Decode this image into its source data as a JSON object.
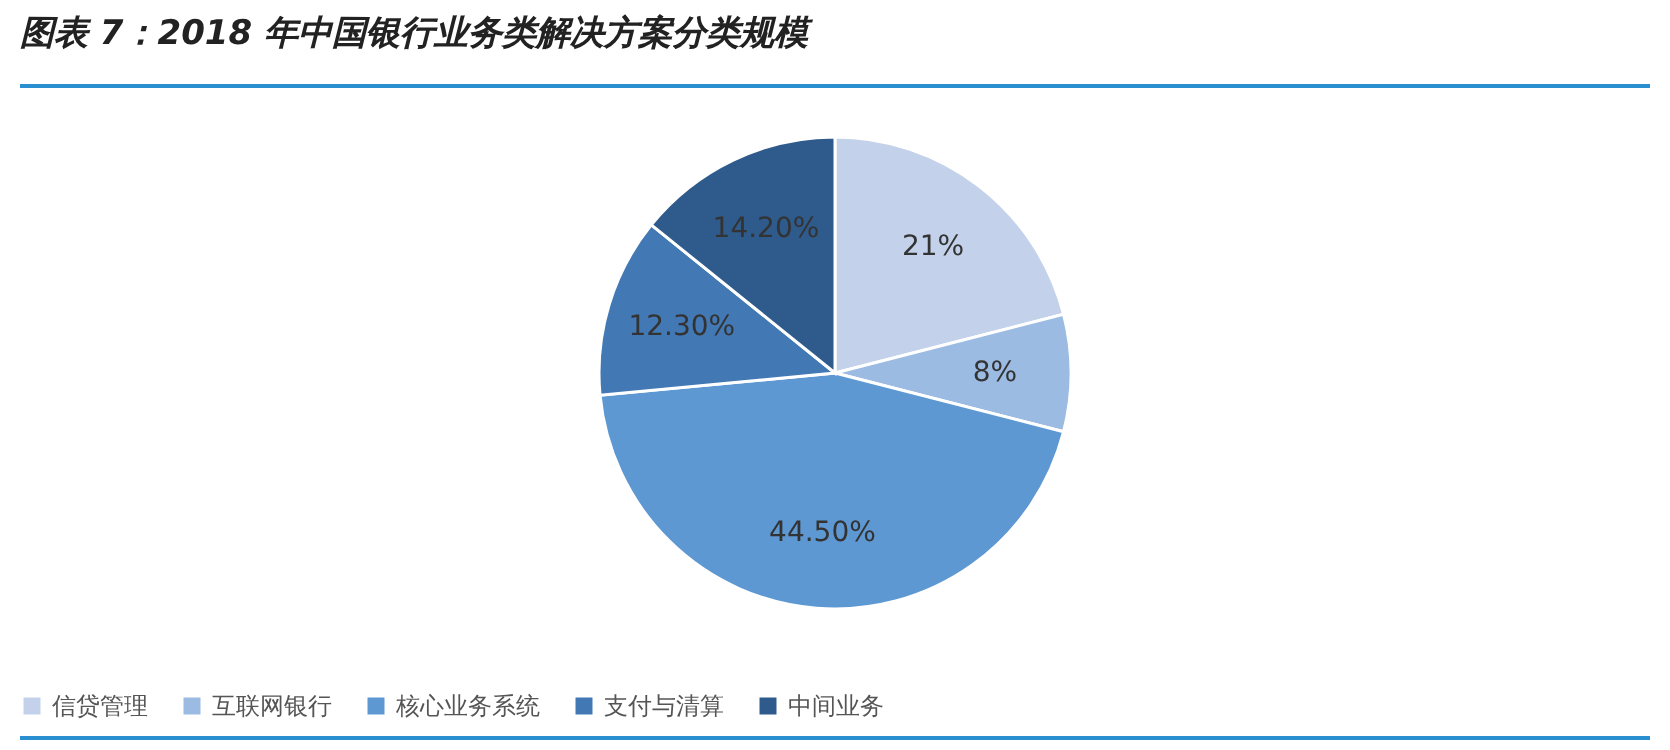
{
  "chart_data": {
    "type": "pie",
    "title": "图表 7：2018 年中国银行业务类解决方案分类规模",
    "categories": [
      "信贷管理",
      "互联网银行",
      "核心业务系统",
      "支付与清算",
      "中间业务"
    ],
    "values": [
      21,
      8,
      44.5,
      12.3,
      14.2
    ],
    "value_labels": [
      "21%",
      "8%",
      "44.50%",
      "12.30%",
      "14.20%"
    ],
    "colors": [
      "#c3d2ea",
      "#9bbbe2",
      "#5d98d2",
      "#4279b5",
      "#2f5b8c"
    ],
    "legend": "bottom"
  }
}
